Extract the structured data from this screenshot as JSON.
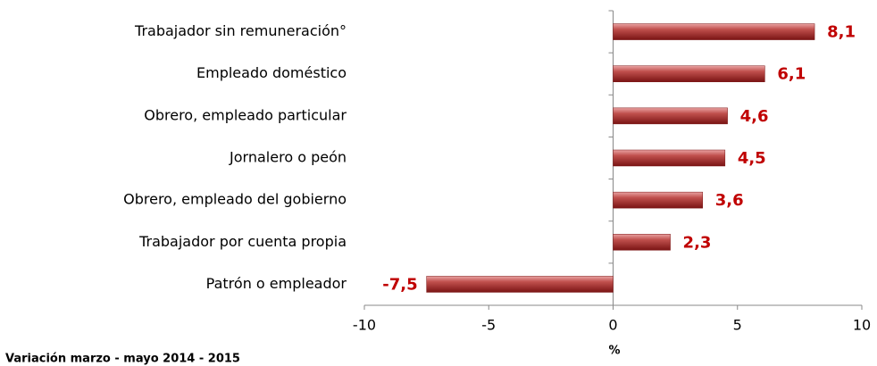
{
  "chart_data": {
    "type": "bar",
    "orientation": "horizontal",
    "categories": [
      "Trabajador sin remuneración°",
      "Empleado doméstico",
      "Obrero, empleado particular",
      "Jornalero o peón",
      "Obrero, empleado del gobierno",
      "Trabajador por cuenta propia",
      "Patrón o empleador"
    ],
    "values": [
      8.1,
      6.1,
      4.6,
      4.5,
      3.6,
      2.3,
      -7.5
    ],
    "value_labels": [
      "8,1",
      "6,1",
      "4,6",
      "4,5",
      "3,6",
      "2,3",
      "-7,5"
    ],
    "color": "#b22a2a",
    "xlim": [
      -10,
      10
    ],
    "xticks": [
      -10,
      -5,
      0,
      5,
      10
    ],
    "xlabel": "%",
    "footnote": "Variación marzo - mayo 2014 - 2015"
  }
}
